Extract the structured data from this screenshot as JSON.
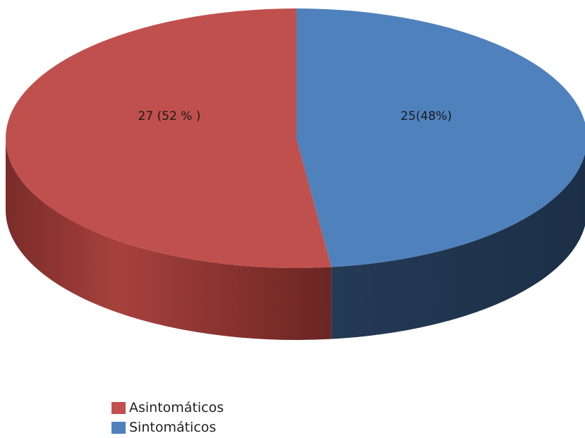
{
  "chart_data": {
    "type": "pie",
    "style": "3d",
    "title": "",
    "slices": [
      {
        "name": "Asintomáticos",
        "value": 27,
        "percent": 52,
        "label": "27 (52 % )",
        "color": "#c0504d",
        "side_color": "#8e3a36"
      },
      {
        "name": "Sintomáticos",
        "value": 25,
        "percent": 48,
        "label": "25(48%)",
        "color": "#4f81bd",
        "side_color": "#2e4d70"
      }
    ],
    "legend": {
      "placement": "bottom-left"
    }
  }
}
